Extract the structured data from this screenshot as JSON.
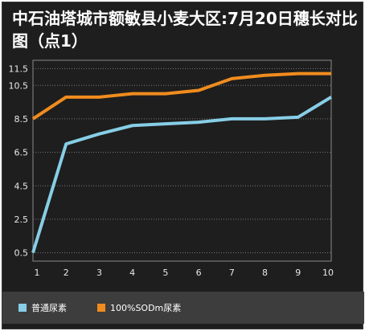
{
  "chart_data": {
    "type": "line",
    "title": "中石油塔城市额敏县小麦大区:7月20日穗长对比图（点1）",
    "xlabel": "",
    "ylabel": "",
    "categories": [
      "1",
      "2",
      "3",
      "4",
      "5",
      "6",
      "7",
      "8",
      "9",
      "10"
    ],
    "y_ticks": [
      "0.5",
      "2.5",
      "4.5",
      "6.5",
      "8.5",
      "10.5",
      "11.5"
    ],
    "ylim": [
      0,
      12
    ],
    "grid": true,
    "legend_position": "bottom",
    "series": [
      {
        "name": "普通尿素",
        "color": "#87cee6",
        "values": [
          0.5,
          7.0,
          7.6,
          8.1,
          8.2,
          8.3,
          8.5,
          8.5,
          8.6,
          9.8
        ]
      },
      {
        "name": "100%SODm尿素",
        "color": "#f08c1e",
        "values": [
          8.5,
          9.8,
          9.8,
          10.0,
          10.0,
          10.2,
          10.9,
          11.1,
          11.2,
          11.2
        ]
      }
    ]
  }
}
